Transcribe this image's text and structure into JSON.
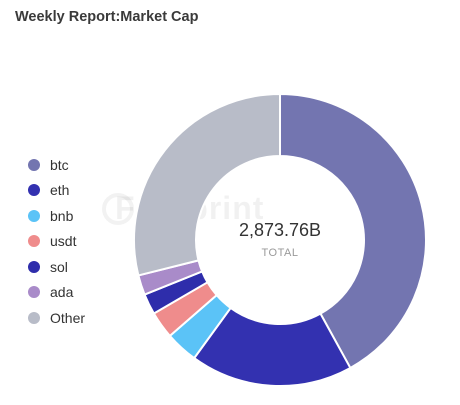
{
  "header": {
    "title": "Weekly Report:Market Cap"
  },
  "watermark": {
    "text": "Footprint"
  },
  "center": {
    "value": "2,873.76B",
    "label": "TOTAL"
  },
  "chart_data": {
    "type": "pie",
    "title": "Weekly Report:Market Cap",
    "total": "2,873.76B",
    "legend_position": "left",
    "categories": [
      "btc",
      "eth",
      "bnb",
      "usdt",
      "sol",
      "ada",
      "Other"
    ],
    "values": [
      42.0,
      18.0,
      3.6,
      3.0,
      2.3,
      2.2,
      28.9
    ],
    "colors": [
      "#7375b0",
      "#3331b0",
      "#5bc3f7",
      "#ef8c8c",
      "#2e2dab",
      "#a98bc9",
      "#b8bcc8"
    ]
  }
}
